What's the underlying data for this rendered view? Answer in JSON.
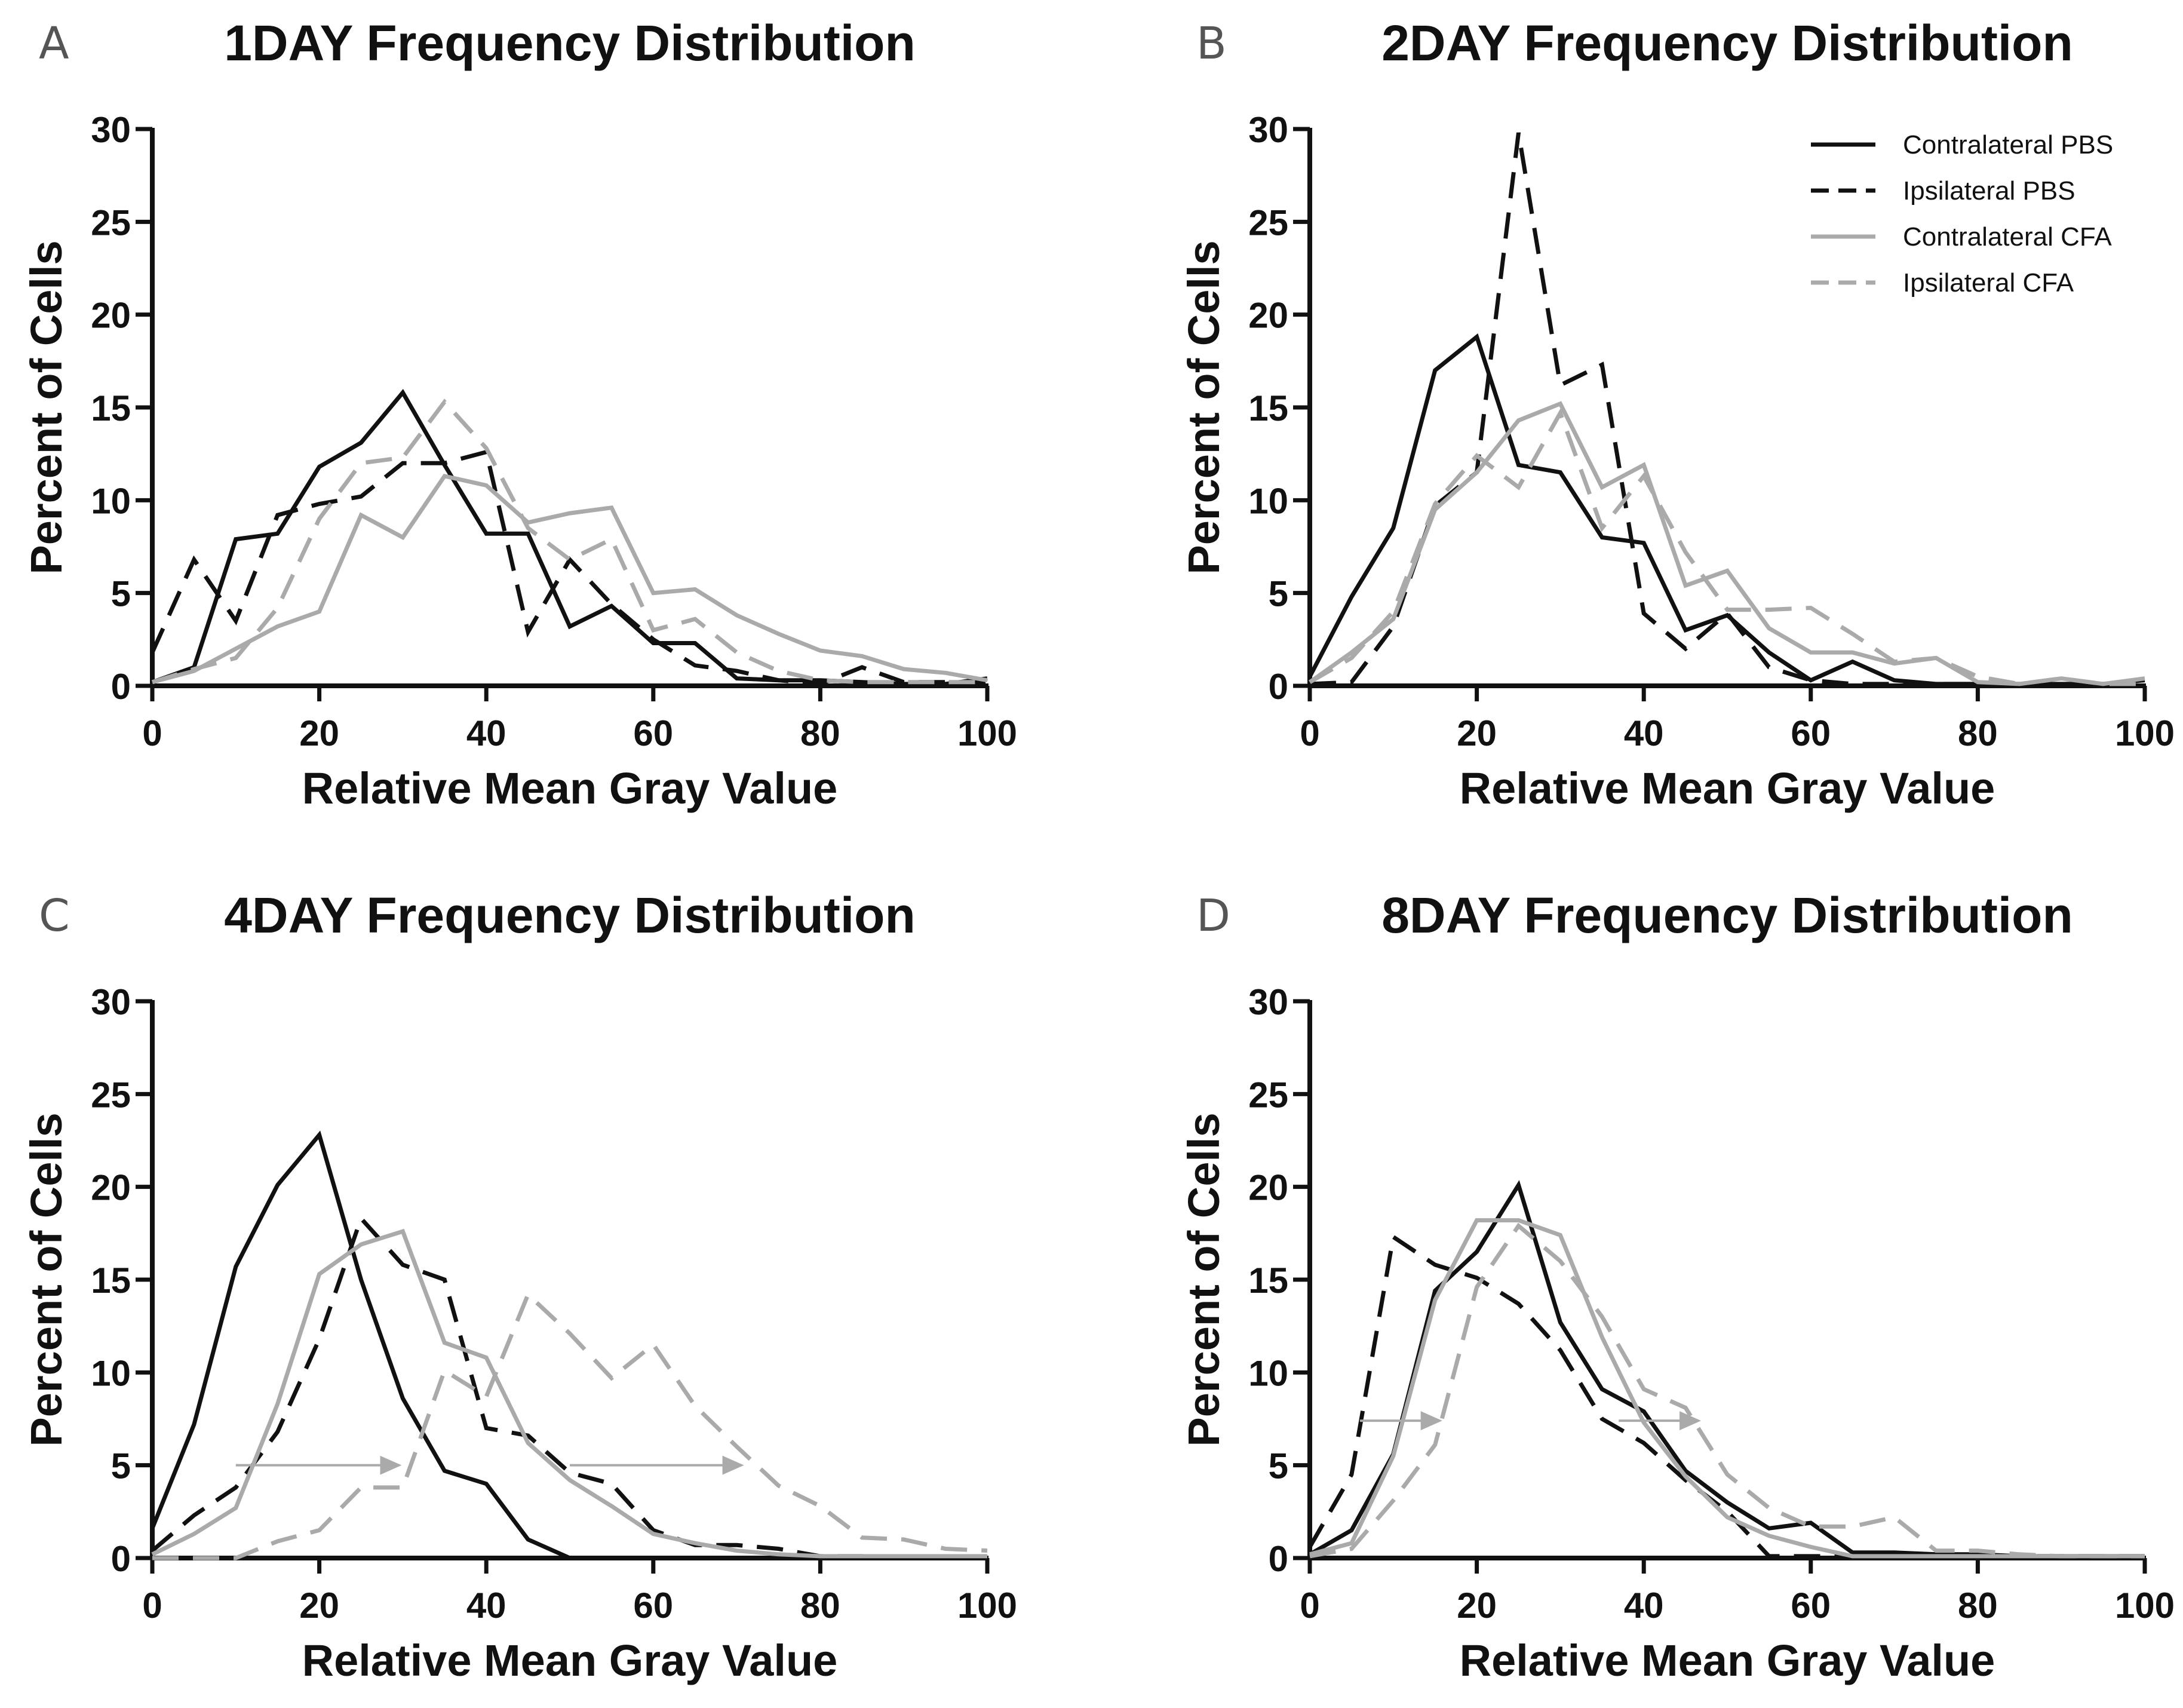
{
  "chart_data": [
    {
      "type": "line",
      "letter": "A",
      "title": "1DAY  Frequency Distribution",
      "xlabel": "Relative Mean Gray Value",
      "ylabel": "Percent of Cells",
      "xlim": [
        0,
        100
      ],
      "ylim": [
        0,
        30
      ],
      "xticks": [
        "0",
        "20",
        "40",
        "60",
        "80",
        "100"
      ],
      "yticks": [
        "0",
        "5",
        "10",
        "15",
        "20",
        "25",
        "30"
      ],
      "x": [
        0,
        5,
        10,
        15,
        20,
        25,
        30,
        35,
        40,
        45,
        50,
        55,
        60,
        65,
        70,
        75,
        80,
        85,
        90,
        95,
        100
      ],
      "series": [
        {
          "key": "contra_pbs",
          "color": "#111111",
          "dashed": false,
          "values": [
            0.2,
            1.0,
            7.9,
            8.2,
            11.8,
            13.1,
            15.8,
            11.9,
            8.2,
            8.2,
            3.2,
            4.3,
            2.3,
            2.3,
            0.4,
            0.3,
            0.3,
            0.2,
            0.1,
            0.1,
            0.4
          ]
        },
        {
          "key": "ipsi_pbs",
          "color": "#111111",
          "dashed": true,
          "values": [
            1.8,
            6.8,
            3.5,
            9.2,
            9.8,
            10.2,
            12.0,
            12.0,
            12.6,
            2.9,
            6.8,
            4.4,
            2.5,
            1.1,
            0.8,
            0.3,
            0.1,
            1.0,
            0.2,
            0.2,
            0.2
          ]
        },
        {
          "key": "contra_cfa",
          "color": "#aaaaaa",
          "dashed": false,
          "values": [
            0.2,
            0.8,
            2.0,
            3.2,
            4.0,
            9.2,
            8.0,
            11.3,
            10.8,
            8.8,
            9.3,
            9.6,
            5.0,
            5.2,
            3.8,
            2.8,
            1.9,
            1.6,
            0.9,
            0.7,
            0.3
          ]
        },
        {
          "key": "ipsi_cfa",
          "color": "#aaaaaa",
          "dashed": true,
          "values": [
            0.2,
            0.9,
            1.5,
            4.2,
            9.0,
            12.0,
            12.3,
            15.3,
            12.8,
            8.5,
            6.8,
            7.9,
            3.0,
            3.6,
            1.8,
            0.8,
            0.3,
            0.2,
            0.2,
            0.2,
            0.2
          ]
        }
      ]
    },
    {
      "type": "line",
      "letter": "B",
      "title": "2DAY Frequency Distribution",
      "xlabel": "Relative Mean Gray Value",
      "ylabel": "Percent of Cells",
      "xlim": [
        0,
        100
      ],
      "ylim": [
        0,
        30
      ],
      "xticks": [
        "0",
        "20",
        "40",
        "60",
        "80",
        "100"
      ],
      "yticks": [
        "0",
        "5",
        "10",
        "15",
        "20",
        "25",
        "30"
      ],
      "x": [
        0,
        5,
        10,
        15,
        20,
        25,
        30,
        35,
        40,
        45,
        50,
        55,
        60,
        65,
        70,
        75,
        80,
        85,
        90,
        95,
        100
      ],
      "series": [
        {
          "key": "contra_pbs",
          "color": "#111111",
          "dashed": false,
          "values": [
            0.5,
            4.8,
            8.5,
            17.0,
            18.8,
            11.9,
            11.5,
            8.0,
            7.7,
            3.0,
            3.8,
            1.8,
            0.3,
            1.3,
            0.3,
            0.1,
            0.1,
            0.1,
            0.1,
            0.1,
            0.3
          ]
        },
        {
          "key": "ipsi_pbs",
          "color": "#111111",
          "dashed": true,
          "values": [
            0.1,
            0.2,
            3.2,
            9.7,
            11.5,
            29.8,
            16.2,
            17.3,
            3.9,
            2.0,
            3.9,
            1.0,
            0.3,
            0.1,
            0.1,
            0.1,
            0.1,
            0.1,
            0.1,
            0.1,
            0.1
          ]
        },
        {
          "key": "contra_cfa",
          "color": "#aaaaaa",
          "dashed": false,
          "values": [
            0.2,
            1.8,
            3.6,
            9.5,
            11.5,
            14.3,
            15.2,
            10.7,
            11.9,
            5.4,
            6.2,
            3.1,
            1.8,
            1.8,
            1.2,
            1.5,
            0.2,
            0.1,
            0.4,
            0.1,
            0.4
          ]
        },
        {
          "key": "ipsi_cfa",
          "color": "#aaaaaa",
          "dashed": true,
          "values": [
            0.2,
            1.5,
            4.0,
            9.8,
            12.4,
            10.7,
            14.7,
            8.5,
            11.3,
            7.2,
            4.1,
            4.1,
            4.2,
            2.8,
            1.3,
            1.5,
            0.5,
            0.1,
            0.4,
            0.1,
            0.1
          ]
        }
      ]
    },
    {
      "type": "line",
      "letter": "C",
      "title": "4DAY Frequency Distribution",
      "xlabel": "Relative Mean Gray Value",
      "ylabel": "Percent of Cells",
      "xlim": [
        0,
        100
      ],
      "ylim": [
        0,
        30
      ],
      "xticks": [
        "0",
        "20",
        "40",
        "60",
        "80",
        "100"
      ],
      "yticks": [
        "0",
        "5",
        "10",
        "15",
        "20",
        "25",
        "30"
      ],
      "x": [
        0,
        5,
        10,
        15,
        20,
        25,
        30,
        35,
        40,
        45,
        50,
        55,
        60,
        65,
        70,
        75,
        80,
        85,
        90,
        95,
        100
      ],
      "series": [
        {
          "key": "contra_pbs",
          "color": "#111111",
          "dashed": false,
          "values": [
            1.6,
            7.2,
            15.7,
            20.1,
            22.8,
            15.0,
            8.6,
            4.7,
            4.0,
            1.0,
            0.0,
            0.0,
            0.0,
            0.0,
            0.0,
            0.0,
            0.0,
            0.0,
            0.0,
            0.0,
            0.0
          ]
        },
        {
          "key": "ipsi_pbs",
          "color": "#111111",
          "dashed": true,
          "values": [
            0.4,
            2.3,
            3.8,
            6.8,
            11.8,
            18.3,
            15.8,
            15.0,
            7.0,
            6.6,
            4.6,
            4.0,
            1.5,
            0.7,
            0.7,
            0.5,
            0.1,
            0.1,
            0.0,
            0.0,
            0.0
          ]
        },
        {
          "key": "contra_cfa",
          "color": "#aaaaaa",
          "dashed": false,
          "values": [
            0.2,
            1.3,
            2.7,
            8.3,
            15.3,
            16.9,
            17.6,
            11.6,
            10.8,
            6.2,
            4.2,
            2.8,
            1.3,
            0.8,
            0.4,
            0.2,
            0.1,
            0.1,
            0.1,
            0.1,
            0.1
          ]
        },
        {
          "key": "ipsi_cfa",
          "color": "#aaaaaa",
          "dashed": true,
          "values": [
            0.0,
            0.0,
            0.0,
            0.9,
            1.5,
            3.8,
            3.8,
            10.1,
            8.7,
            14.2,
            12.1,
            9.7,
            11.5,
            8.2,
            6.0,
            3.9,
            2.8,
            1.1,
            1.0,
            0.5,
            0.4
          ]
        }
      ]
    },
    {
      "type": "line",
      "letter": "D",
      "title": "8DAY Frequency Distribution",
      "xlabel": "Relative Mean Gray Value",
      "ylabel": "Percent of Cells",
      "xlim": [
        0,
        100
      ],
      "ylim": [
        0,
        30
      ],
      "xticks": [
        "0",
        "20",
        "40",
        "60",
        "80",
        "100"
      ],
      "yticks": [
        "0",
        "5",
        "10",
        "15",
        "20",
        "25",
        "30"
      ],
      "x": [
        0,
        5,
        10,
        15,
        20,
        25,
        30,
        35,
        40,
        45,
        50,
        55,
        60,
        65,
        70,
        75,
        80,
        85,
        90,
        95,
        100
      ],
      "series": [
        {
          "key": "contra_pbs",
          "color": "#111111",
          "dashed": false,
          "values": [
            0.2,
            1.5,
            5.6,
            14.4,
            16.5,
            20.1,
            12.7,
            9.1,
            7.9,
            4.7,
            3.0,
            1.6,
            1.9,
            0.3,
            0.3,
            0.2,
            0.2,
            0.1,
            0.1,
            0.1,
            0.1
          ]
        },
        {
          "key": "ipsi_pbs",
          "color": "#111111",
          "dashed": true,
          "values": [
            0.6,
            4.5,
            17.3,
            15.8,
            15.1,
            13.7,
            11.2,
            7.5,
            6.2,
            4.2,
            2.5,
            0.1,
            0.1,
            0.1,
            0.1,
            0.1,
            0.1,
            0.1,
            0.1,
            0.1,
            0.1
          ]
        },
        {
          "key": "contra_cfa",
          "color": "#aaaaaa",
          "dashed": false,
          "values": [
            0.2,
            0.8,
            5.5,
            13.9,
            18.2,
            18.2,
            17.4,
            11.9,
            7.3,
            4.4,
            2.2,
            1.2,
            0.6,
            0.1,
            0.1,
            0.1,
            0.1,
            0.1,
            0.1,
            0.1,
            0.1
          ]
        },
        {
          "key": "ipsi_cfa",
          "color": "#aaaaaa",
          "dashed": true,
          "values": [
            0.1,
            0.5,
            3.1,
            6.1,
            14.6,
            17.9,
            16.0,
            13.0,
            9.1,
            8.1,
            4.5,
            2.7,
            1.7,
            1.7,
            2.2,
            0.4,
            0.4,
            0.2,
            0.1,
            0.1,
            0.1
          ]
        }
      ]
    }
  ],
  "legend": {
    "panel": 1,
    "placement": "top-right",
    "entries": [
      {
        "label": "Contralateral PBS",
        "color": "#111111",
        "dashed": false
      },
      {
        "label": "Ipsilateral PBS",
        "color": "#111111",
        "dashed": true
      },
      {
        "label": "Contralateral CFA",
        "color": "#aaaaaa",
        "dashed": false
      },
      {
        "label": "Ipsilateral CFA",
        "color": "#aaaaaa",
        "dashed": true
      }
    ]
  },
  "annotations": [
    {
      "panel": 2,
      "type": "arrow",
      "from": [
        10,
        5
      ],
      "to": [
        30,
        5
      ],
      "color": "#aaaaaa"
    },
    {
      "panel": 2,
      "type": "arrow",
      "from": [
        50,
        5
      ],
      "to": [
        71,
        5
      ],
      "color": "#aaaaaa"
    },
    {
      "panel": 3,
      "type": "arrow",
      "from": [
        6,
        7.4
      ],
      "to": [
        16,
        7.4
      ],
      "color": "#aaaaaa"
    },
    {
      "panel": 3,
      "type": "arrow",
      "from": [
        37,
        7.4
      ],
      "to": [
        47,
        7.4
      ],
      "color": "#aaaaaa"
    }
  ]
}
